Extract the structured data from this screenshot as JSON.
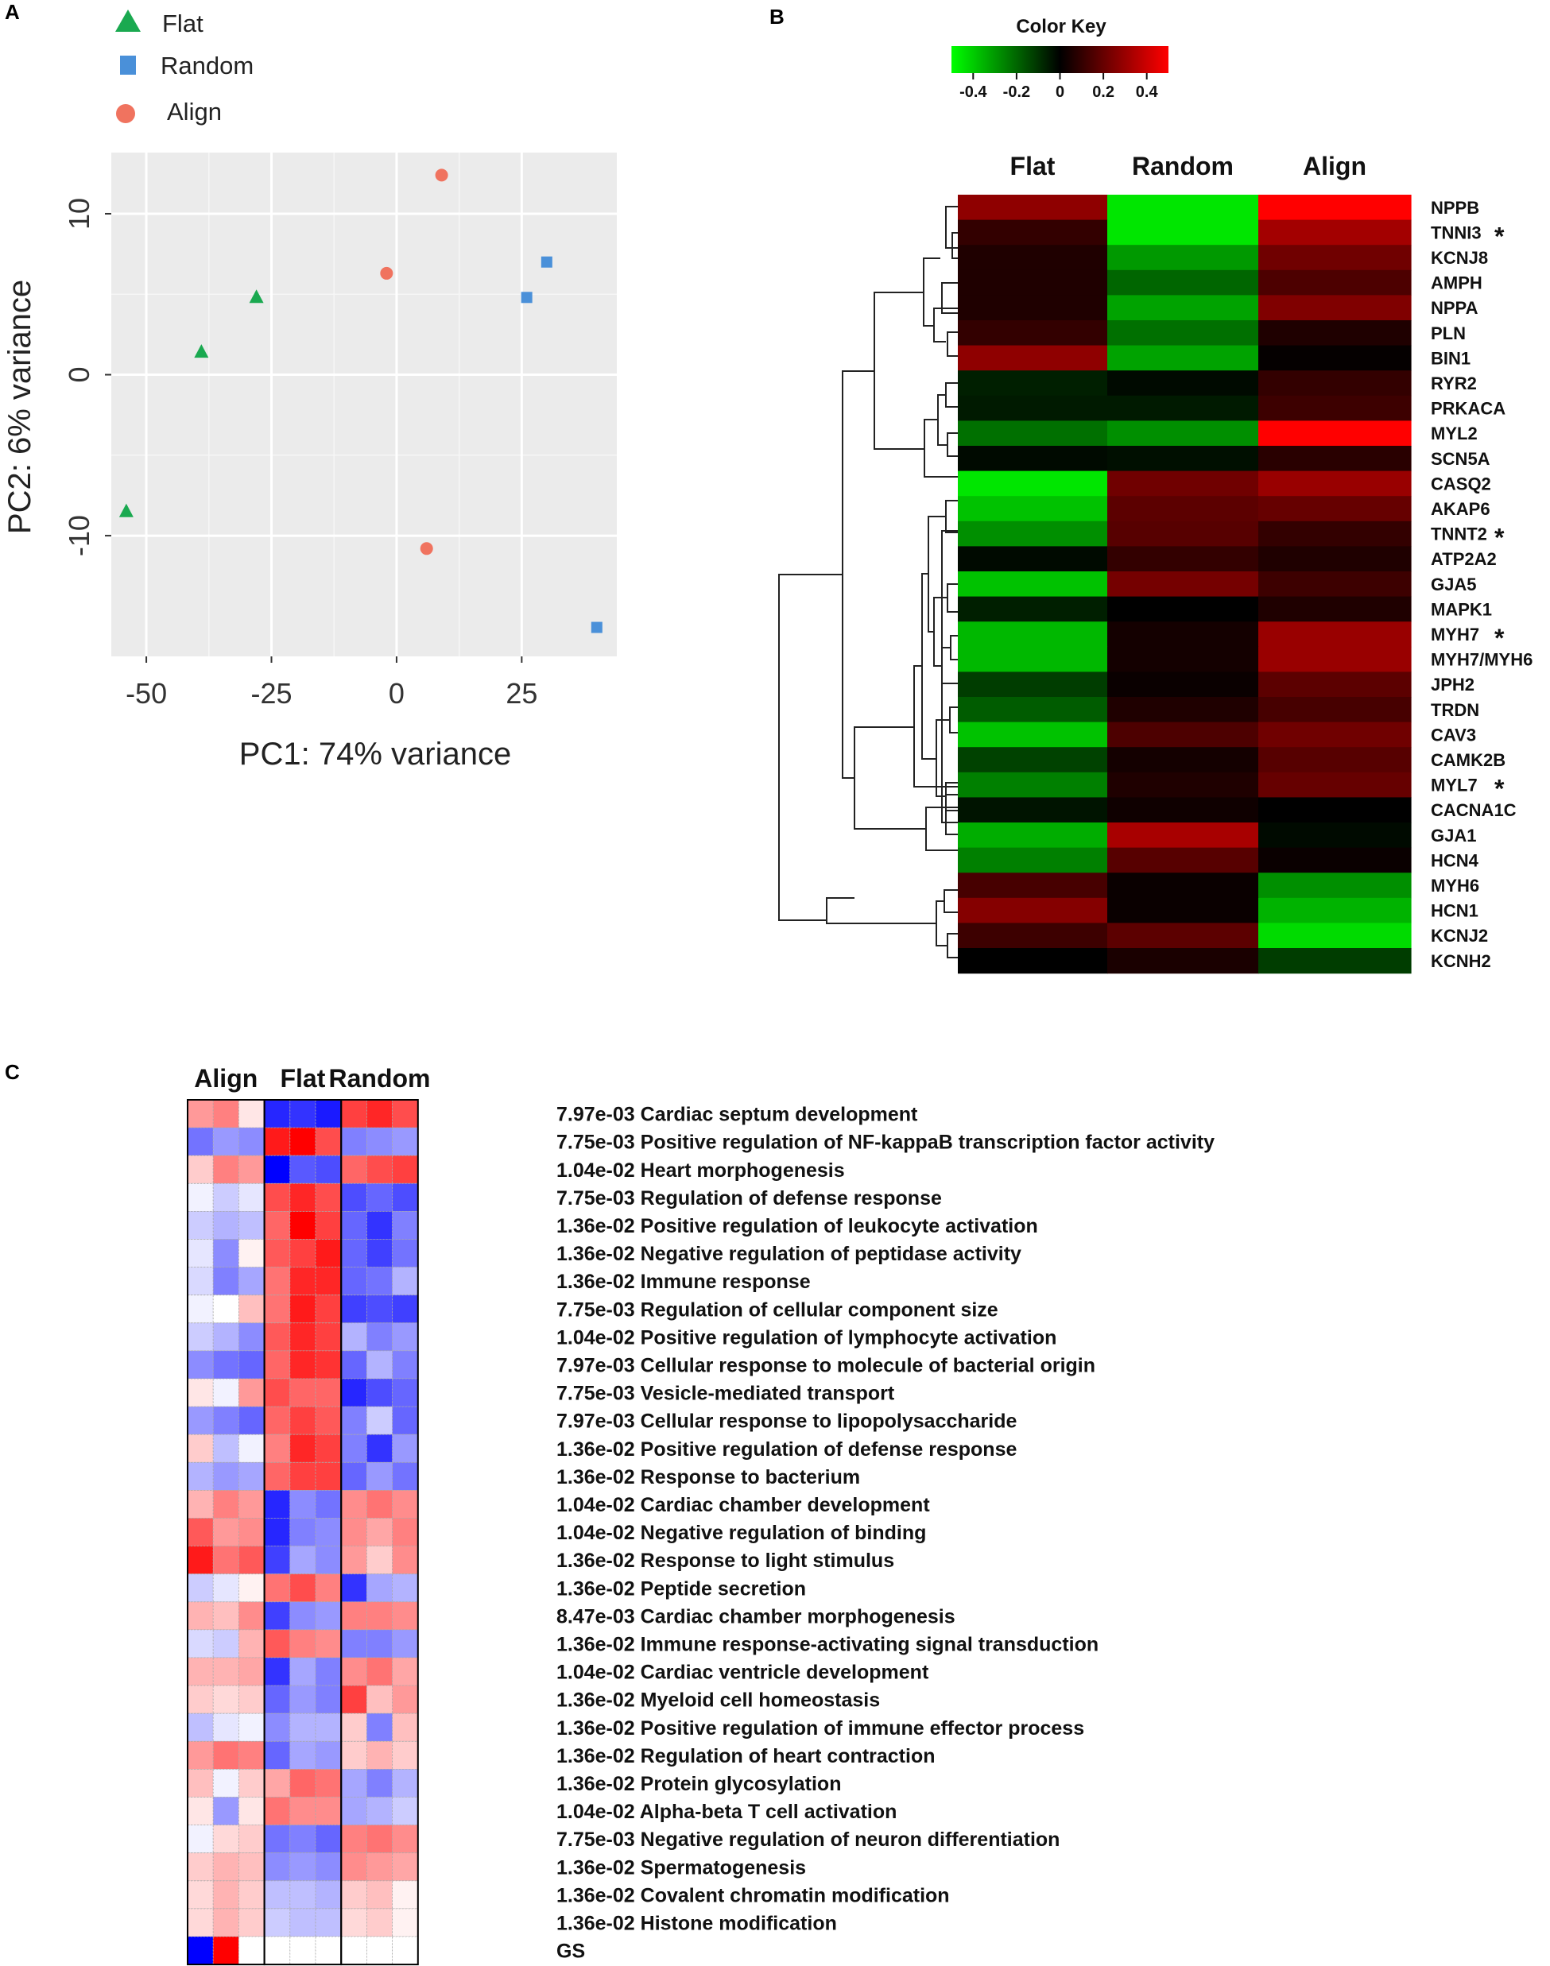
{
  "colors": {
    "flat": "#1aa950",
    "random": "#4a90d9",
    "align": "#f0735f",
    "pca_bg": "#ebebeb",
    "heat_low": "#00ff00",
    "heat_mid": "#000000",
    "heat_high": "#ff0000",
    "go_low": "#0000ff",
    "go_mid": "#ffffff",
    "go_high": "#ff0000"
  },
  "panels": {
    "a": "A",
    "b": "B",
    "c": "C"
  },
  "chart_data": [
    {
      "id": "A",
      "type": "scatter",
      "xlabel": "PC1: 74% variance",
      "ylabel": "PC2: 6% variance",
      "xlim": [
        -57,
        44
      ],
      "ylim": [
        -17.5,
        13.8
      ],
      "xticks": [
        -50,
        -25,
        0,
        25
      ],
      "yticks": [
        -10,
        0,
        10
      ],
      "xtick_labels": [
        "-50",
        "-25",
        "0",
        "25"
      ],
      "ytick_labels": [
        "-10",
        "0",
        "10"
      ],
      "legend": [
        {
          "label": "Flat",
          "marker": "triangle"
        },
        {
          "label": "Random",
          "marker": "square"
        },
        {
          "label": "Align",
          "marker": "circle"
        }
      ],
      "series": [
        {
          "name": "Flat",
          "marker": "triangle",
          "points": [
            [
              -54,
              -8.5
            ],
            [
              -39,
              1.4
            ],
            [
              -28,
              4.8
            ]
          ]
        },
        {
          "name": "Random",
          "marker": "square",
          "points": [
            [
              26,
              4.8
            ],
            [
              30,
              7.0
            ],
            [
              40,
              -15.7
            ]
          ]
        },
        {
          "name": "Align",
          "marker": "circle",
          "points": [
            [
              -2,
              6.3
            ],
            [
              9,
              12.4
            ],
            [
              6,
              -10.8
            ]
          ]
        }
      ]
    },
    {
      "id": "B",
      "type": "heatmap",
      "key_title": "Color Key",
      "key_ticks": [
        "-0.4",
        "-0.2",
        "0",
        "0.2",
        "0.4"
      ],
      "key_values": [
        -0.4,
        -0.2,
        0,
        0.2,
        0.4
      ],
      "key_range": [
        -0.5,
        0.5
      ],
      "columns": [
        "Flat",
        "Random",
        "Align"
      ],
      "rows": [
        "NPPB",
        "TNNI3",
        "KCNJ8",
        "AMPH",
        "NPPA",
        "PLN",
        "BIN1",
        "RYR2",
        "PRKACA",
        "MYL2",
        "SCN5A",
        "CASQ2",
        "AKAP6",
        "TNNT2",
        "ATP2A2",
        "GJA5",
        "MAPK1",
        "MYH7",
        "MYH7/MYH6",
        "JPH2",
        "TRDN",
        "CAV3",
        "CAMK2B",
        "MYL7",
        "CACNA1C",
        "GJA1",
        "HCN4",
        "MYH6",
        "HCN1",
        "KCNJ2",
        "KCNH2"
      ],
      "starred": [
        "TNNI3",
        "TNNT2",
        "MYH7",
        "MYL7"
      ],
      "star_symbol": "*",
      "values": [
        [
          0.28,
          -0.45,
          0.5
        ],
        [
          0.1,
          -0.45,
          0.32
        ],
        [
          0.06,
          -0.3,
          0.22
        ],
        [
          0.06,
          -0.2,
          0.15
        ],
        [
          0.06,
          -0.32,
          0.25
        ],
        [
          0.1,
          -0.22,
          0.06
        ],
        [
          0.28,
          -0.32,
          0.01
        ],
        [
          -0.06,
          -0.02,
          0.1
        ],
        [
          -0.05,
          -0.05,
          0.12
        ],
        [
          -0.22,
          -0.28,
          0.5
        ],
        [
          -0.02,
          -0.03,
          0.08
        ],
        [
          -0.45,
          0.22,
          0.3
        ],
        [
          -0.38,
          0.18,
          0.2
        ],
        [
          -0.28,
          0.17,
          0.1
        ],
        [
          -0.02,
          0.1,
          0.06
        ],
        [
          -0.38,
          0.23,
          0.12
        ],
        [
          -0.06,
          0.0,
          0.06
        ],
        [
          -0.36,
          0.04,
          0.3
        ],
        [
          -0.36,
          0.04,
          0.3
        ],
        [
          -0.12,
          0.02,
          0.18
        ],
        [
          -0.18,
          0.06,
          0.14
        ],
        [
          -0.38,
          0.15,
          0.22
        ],
        [
          -0.13,
          0.04,
          0.17
        ],
        [
          -0.25,
          0.06,
          0.2
        ],
        [
          -0.04,
          0.03,
          0.0
        ],
        [
          -0.34,
          0.33,
          -0.02
        ],
        [
          -0.25,
          0.17,
          0.02
        ],
        [
          0.14,
          0.02,
          -0.28
        ],
        [
          0.26,
          0.02,
          -0.35
        ],
        [
          0.12,
          0.18,
          -0.43
        ],
        [
          0.0,
          0.05,
          -0.12
        ]
      ]
    },
    {
      "id": "C",
      "type": "heatmap",
      "groups": [
        "Align",
        "Flat",
        "Random"
      ],
      "terms": [
        "7.97e-03 Cardiac septum development",
        "7.75e-03 Positive regulation of NF-kappaB transcription factor activity",
        "1.04e-02 Heart morphogenesis",
        "7.75e-03 Regulation of defense response",
        "1.36e-02 Positive regulation of leukocyte activation",
        "1.36e-02 Negative regulation of peptidase activity",
        "1.36e-02 Immune response",
        "7.75e-03 Regulation of cellular component size",
        "1.04e-02 Positive regulation of lymphocyte activation",
        "7.97e-03 Cellular response to molecule of bacterial origin",
        "7.75e-03 Vesicle-mediated transport",
        "7.97e-03 Cellular response to lipopolysaccharide",
        "1.36e-02 Positive regulation of defense response",
        "1.36e-02 Response to bacterium",
        "1.04e-02 Cardiac chamber development",
        "1.04e-02 Negative regulation of binding",
        "1.36e-02 Response to light stimulus",
        "1.36e-02 Peptide secretion",
        "8.47e-03 Cardiac chamber morphogenesis",
        "1.36e-02 Immune response-activating signal transduction",
        "1.04e-02 Cardiac ventricle development",
        "1.36e-02 Myeloid cell homeostasis",
        "1.36e-02 Positive regulation of immune effector process",
        "1.36e-02 Regulation of heart contraction",
        "1.36e-02 Protein glycosylation",
        "1.04e-02 Alpha-beta T cell activation",
        "7.75e-03 Negative regulation of neuron differentiation",
        "1.36e-02 Spermatogenesis",
        "1.36e-02 Covalent chromatin modification",
        "1.36e-02 Histone modification",
        "GS"
      ],
      "values": [
        [
          0.4,
          0.5,
          0.1,
          -0.85,
          -0.8,
          -0.9,
          0.75,
          0.85,
          0.7
        ],
        [
          -0.55,
          -0.4,
          -0.45,
          0.9,
          1.0,
          0.7,
          -0.5,
          -0.45,
          -0.4
        ],
        [
          0.2,
          0.5,
          0.4,
          -1.0,
          -0.65,
          -0.7,
          0.6,
          0.7,
          0.75
        ],
        [
          -0.05,
          -0.2,
          -0.1,
          0.7,
          0.85,
          0.7,
          -0.7,
          -0.6,
          -0.7
        ],
        [
          -0.2,
          -0.3,
          -0.25,
          0.6,
          1.0,
          0.75,
          -0.6,
          -0.8,
          -0.5
        ],
        [
          -0.1,
          -0.45,
          0.05,
          0.65,
          0.75,
          0.9,
          -0.6,
          -0.75,
          -0.55
        ],
        [
          -0.15,
          -0.5,
          -0.35,
          0.55,
          0.85,
          0.85,
          -0.6,
          -0.55,
          -0.3
        ],
        [
          -0.05,
          0.0,
          0.25,
          0.55,
          0.9,
          0.75,
          -0.75,
          -0.7,
          -0.75
        ],
        [
          -0.2,
          -0.3,
          -0.45,
          0.65,
          0.85,
          0.75,
          -0.3,
          -0.5,
          -0.4
        ],
        [
          -0.45,
          -0.55,
          -0.6,
          0.6,
          0.85,
          0.8,
          -0.6,
          -0.3,
          -0.5
        ],
        [
          0.1,
          -0.05,
          0.4,
          0.7,
          0.6,
          0.6,
          -0.85,
          -0.7,
          -0.6
        ],
        [
          -0.4,
          -0.5,
          -0.6,
          0.6,
          0.75,
          0.65,
          -0.5,
          -0.2,
          -0.6
        ],
        [
          0.2,
          -0.25,
          -0.05,
          0.5,
          0.85,
          0.75,
          -0.5,
          -0.8,
          -0.4
        ],
        [
          -0.3,
          -0.4,
          -0.35,
          0.6,
          0.75,
          0.75,
          -0.6,
          -0.4,
          -0.55
        ],
        [
          0.3,
          0.5,
          0.4,
          -0.85,
          -0.45,
          -0.55,
          0.45,
          0.55,
          0.45
        ],
        [
          0.65,
          0.4,
          0.45,
          -0.85,
          -0.5,
          -0.45,
          0.45,
          0.35,
          0.5
        ],
        [
          0.9,
          0.55,
          0.65,
          -0.75,
          -0.35,
          -0.45,
          0.4,
          0.2,
          0.45
        ],
        [
          -0.2,
          -0.1,
          0.05,
          0.55,
          0.7,
          0.5,
          -0.8,
          -0.35,
          -0.3
        ],
        [
          0.3,
          0.25,
          0.45,
          -0.75,
          -0.45,
          -0.4,
          0.5,
          0.5,
          0.45
        ],
        [
          -0.15,
          -0.2,
          0.3,
          0.65,
          0.5,
          0.45,
          -0.5,
          -0.5,
          -0.4
        ],
        [
          0.3,
          0.3,
          0.35,
          -0.8,
          -0.35,
          -0.5,
          0.45,
          0.55,
          0.35
        ],
        [
          0.2,
          0.15,
          0.2,
          -0.6,
          -0.4,
          -0.5,
          0.75,
          0.25,
          0.4
        ],
        [
          -0.25,
          -0.1,
          -0.05,
          -0.45,
          -0.3,
          -0.3,
          0.2,
          -0.5,
          0.25
        ],
        [
          0.4,
          0.55,
          0.5,
          -0.6,
          -0.35,
          -0.4,
          0.2,
          0.3,
          0.2
        ],
        [
          0.25,
          -0.05,
          0.2,
          0.35,
          0.6,
          0.55,
          -0.35,
          -0.5,
          -0.3
        ],
        [
          0.1,
          -0.4,
          0.1,
          0.55,
          0.45,
          0.45,
          -0.35,
          -0.3,
          -0.2
        ],
        [
          -0.05,
          0.15,
          0.2,
          -0.55,
          -0.5,
          -0.6,
          0.5,
          0.55,
          0.45
        ],
        [
          0.2,
          0.3,
          0.25,
          -0.45,
          -0.4,
          -0.45,
          0.45,
          0.4,
          0.35
        ],
        [
          0.15,
          0.3,
          0.2,
          -0.25,
          -0.25,
          -0.3,
          0.2,
          0.25,
          0.05
        ],
        [
          0.15,
          0.3,
          0.2,
          -0.2,
          -0.25,
          -0.25,
          0.15,
          0.2,
          0.05
        ],
        [
          -1.0,
          1.0,
          0.0,
          0.0,
          0.0,
          0.0,
          0.0,
          0.0,
          0.0
        ]
      ]
    }
  ]
}
